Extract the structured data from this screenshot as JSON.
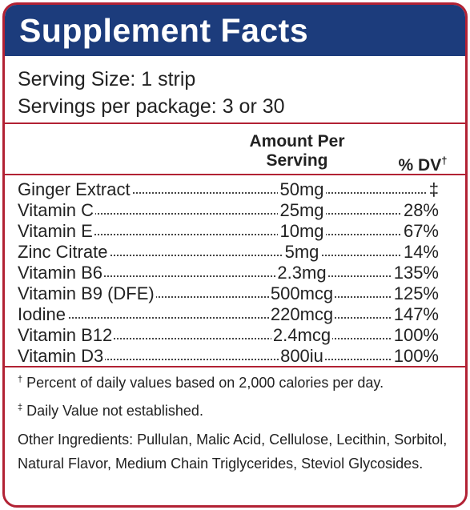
{
  "colors": {
    "header_bg": "#1c3c7c",
    "border": "#b22234",
    "text": "#222222"
  },
  "title": "Supplement Facts",
  "serving": {
    "size": "Serving Size: 1 strip",
    "per_package": "Servings per package: 3 or 30"
  },
  "columns": {
    "amount_line1": "Amount Per",
    "amount_line2": "Serving",
    "dv": "% DV",
    "dv_mark": "†"
  },
  "nutrients": [
    {
      "name": "Ginger Extract",
      "amount": "50mg",
      "dv": "‡"
    },
    {
      "name": "Vitamin C",
      "amount": "25mg",
      "dv": "28%"
    },
    {
      "name": "Vitamin E",
      "amount": "10mg",
      "dv": "67%"
    },
    {
      "name": "Zinc Citrate",
      "amount": "5mg",
      "dv": "14%"
    },
    {
      "name": "Vitamin B6",
      "amount": "2.3mg",
      "dv": "135%"
    },
    {
      "name": "Vitamin B9 (DFE)",
      "amount": "500mcg",
      "dv": "125%"
    },
    {
      "name": "Iodine",
      "amount": "220mcg",
      "dv": "147%"
    },
    {
      "name": "Vitamin B12",
      "amount": "2.4mcg",
      "dv": "100%"
    },
    {
      "name": "Vitamin D3",
      "amount": "800iu",
      "dv": "100%"
    }
  ],
  "footnotes": {
    "dagger_mark": "†",
    "dagger_text": "Percent of daily values based on 2,000 calories per day.",
    "ddagger_mark": "‡",
    "ddagger_text": "Daily Value not established."
  },
  "other_ingredients": "Other Ingredients: Pullulan, Malic Acid, Cellulose, Lecithin, Sorbitol, Natural Flavor, Medium Chain Triglycerides, Steviol Glycosides."
}
